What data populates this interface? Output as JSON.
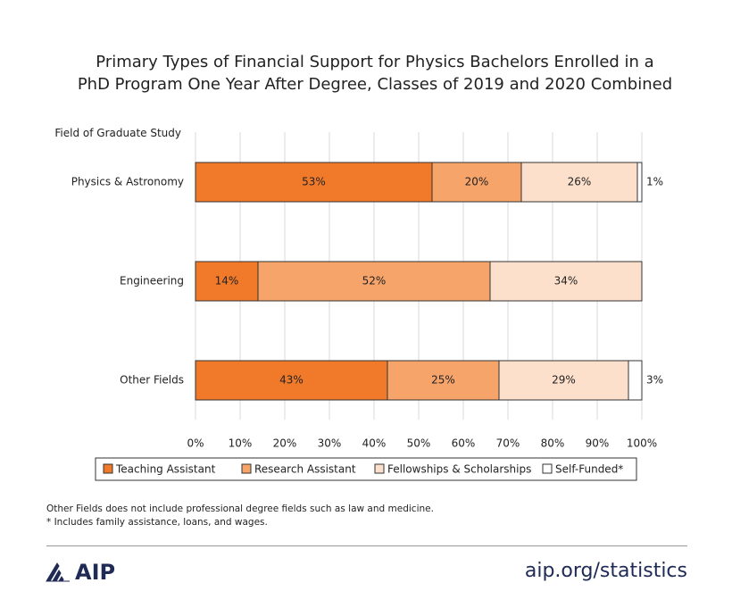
{
  "chart_data": {
    "type": "stacked-bar-horizontal",
    "title": [
      "Primary Types of Financial Support for Physics Bachelors Enrolled in a",
      "PhD Program One Year After Degree, Classes of 2019 and 2020 Combined"
    ],
    "y_label": "Field of Graduate Study",
    "categories": [
      "Physics & Astronomy",
      "Engineering",
      "Other Fields"
    ],
    "series": [
      {
        "name": "Teaching Assistant",
        "color": "#f07a2a",
        "values": [
          53,
          14,
          43
        ],
        "value_labels": [
          "53%",
          "14%",
          "43%"
        ]
      },
      {
        "name": "Research Assistant",
        "color": "#f6a46a",
        "values": [
          20,
          52,
          25
        ],
        "value_labels": [
          "20%",
          "52%",
          "25%"
        ]
      },
      {
        "name": "Fellowships & Scholarships",
        "color": "#fde0cc",
        "values": [
          26,
          34,
          29
        ],
        "value_labels": [
          "26%",
          "34%",
          "29%"
        ]
      },
      {
        "name": "Self-Funded*",
        "color": "#ffffff",
        "values": [
          1,
          null,
          3
        ],
        "value_labels": [
          "1%",
          null,
          "3%"
        ]
      }
    ],
    "xlim": [
      0,
      100
    ],
    "xticks": [
      {
        "value": 0,
        "label": "0%"
      },
      {
        "value": 10,
        "label": "10%"
      },
      {
        "value": 20,
        "label": "20%"
      },
      {
        "value": 30,
        "label": "30%"
      },
      {
        "value": 40,
        "label": "40%"
      },
      {
        "value": 50,
        "label": "50%"
      },
      {
        "value": 60,
        "label": "60%"
      },
      {
        "value": 70,
        "label": "70%"
      },
      {
        "value": 80,
        "label": "80%"
      },
      {
        "value": 90,
        "label": "90%"
      },
      {
        "value": 100,
        "label": "100%"
      }
    ],
    "grid": true,
    "legend": "bottom"
  },
  "footer": {
    "notes": [
      "Other Fields does not include professional degree fields such as law and medicine.",
      "* Includes family assistance, loans, and wages."
    ],
    "logo": "AIP",
    "url": "aip.org/statistics"
  }
}
